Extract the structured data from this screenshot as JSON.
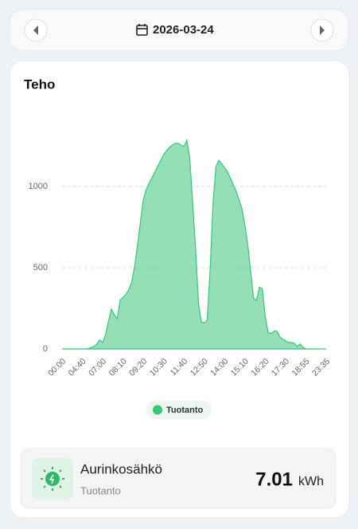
{
  "header": {
    "date": "2026-03-24"
  },
  "chart_data": {
    "type": "area",
    "title": "Teho",
    "categories": [
      "00:00",
      null,
      null,
      null,
      null,
      null,
      null,
      "04:40",
      null,
      null,
      null,
      null,
      null,
      null,
      "07:00",
      null,
      null,
      null,
      null,
      null,
      null,
      "08:10",
      null,
      null,
      null,
      null,
      null,
      null,
      "09:20",
      null,
      null,
      null,
      null,
      null,
      null,
      "10:30",
      null,
      null,
      null,
      null,
      null,
      null,
      "11:40",
      null,
      null,
      null,
      null,
      null,
      null,
      "12:50",
      null,
      null,
      null,
      null,
      null,
      null,
      "14:00",
      null,
      null,
      null,
      null,
      null,
      null,
      "15:10",
      null,
      null,
      null,
      null,
      null,
      null,
      "16:20",
      null,
      null,
      null,
      null,
      null,
      null,
      "17:30",
      null,
      null,
      null,
      null,
      null,
      null,
      "18:55",
      null,
      null,
      null,
      null,
      null,
      null,
      "23:35"
    ],
    "series": [
      {
        "name": "Tuotanto",
        "color": "#3cc47a",
        "values": [
          0,
          0,
          0,
          0,
          0,
          0,
          0,
          0,
          0,
          2,
          8,
          15,
          30,
          55,
          40,
          90,
          170,
          245,
          210,
          185,
          300,
          318,
          335,
          365,
          410,
          510,
          640,
          780,
          920,
          980,
          1020,
          1055,
          1090,
          1125,
          1160,
          1195,
          1220,
          1240,
          1255,
          1265,
          1265,
          1255,
          1245,
          1285,
          1170,
          900,
          620,
          280,
          165,
          160,
          175,
          480,
          890,
          1120,
          1160,
          1140,
          1115,
          1090,
          1050,
          1010,
          970,
          915,
          860,
          760,
          640,
          475,
          310,
          300,
          380,
          370,
          200,
          100,
          95,
          110,
          110,
          75,
          60,
          50,
          40,
          40,
          35,
          15,
          30,
          10,
          0,
          0,
          0,
          0,
          0,
          0,
          0,
          0
        ]
      }
    ],
    "ylim": [
      0,
      1400
    ],
    "yticks": [
      0,
      500,
      1000
    ],
    "grid": true
  },
  "summary": {
    "name": "Aurinkosähkö",
    "subtitle": "Tuotanto",
    "value": 7.01,
    "unit": "kWh"
  }
}
